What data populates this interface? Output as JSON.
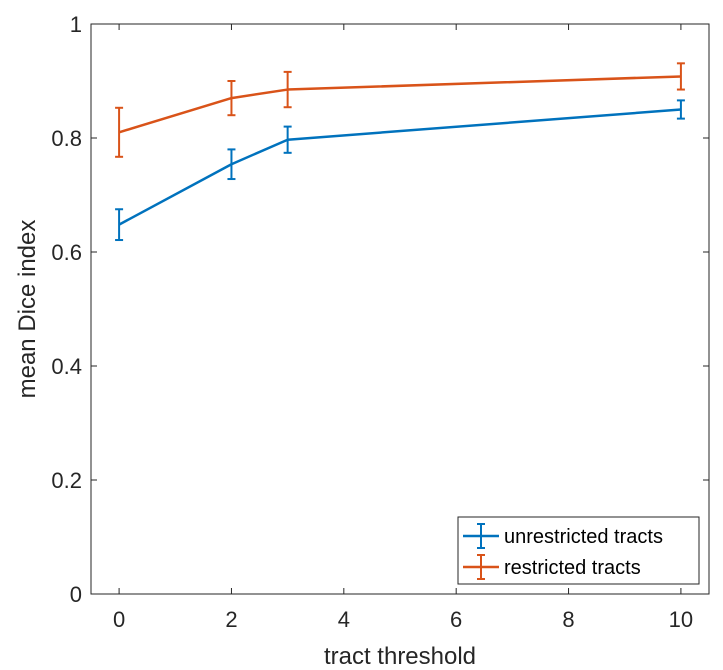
{
  "chart_data": {
    "type": "line",
    "title": "",
    "xlabel": "tract threshold",
    "ylabel": "mean Dice index",
    "xlim": [
      -0.5,
      10.5
    ],
    "ylim": [
      0,
      1
    ],
    "xticks": [
      0,
      2,
      4,
      6,
      8,
      10
    ],
    "yticks": [
      0,
      0.2,
      0.4,
      0.6,
      0.8,
      1
    ],
    "xtick_labels": [
      "0",
      "2",
      "4",
      "6",
      "8",
      "10"
    ],
    "ytick_labels": [
      "0",
      "0.2",
      "0.4",
      "0.6",
      "0.8",
      "1"
    ],
    "grid": false,
    "legend_position": "bottom-right",
    "x": [
      0,
      2,
      3,
      10
    ],
    "series": [
      {
        "name": "unrestricted tracts",
        "color": "#0072BD",
        "values": [
          0.648,
          0.754,
          0.797,
          0.85
        ],
        "error": [
          0.027,
          0.026,
          0.023,
          0.016
        ]
      },
      {
        "name": "restricted tracts",
        "color": "#D95319",
        "values": [
          0.81,
          0.87,
          0.885,
          0.908
        ],
        "error": [
          0.043,
          0.03,
          0.031,
          0.023
        ]
      }
    ]
  }
}
